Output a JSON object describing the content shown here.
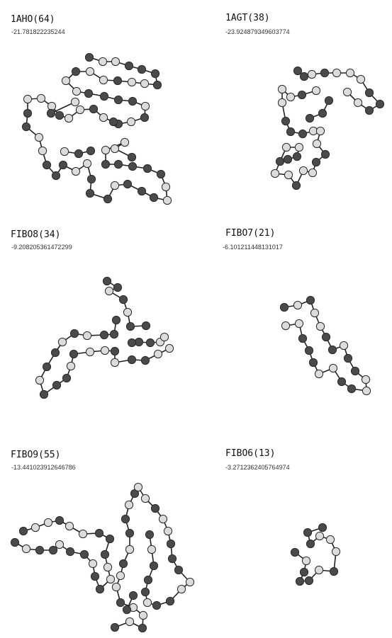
{
  "colors": {
    "hydrophobic": "#4a4a4a",
    "polar": "#dcdcdc",
    "bond": "#222222"
  },
  "proteins": [
    {
      "name": "1AHO(64)",
      "energy": "-21.781822235244",
      "sequence": "HPPHHHHPPHPPHPPHHHHPHPHHPHPPHPPPHHPPHHHPPHHHPHHHPPHHHHHPPPHHHPHP"
    },
    {
      "name": "1AGT(38)",
      "energy": "-23.924879349603774",
      "sequence": "HHPHPPPHHHPPPHPPPHHHPPPHHPPHPPHPPHHHHH"
    },
    {
      "name": "FIBO8(34)",
      "energy": "-9.208205361472299",
      "sequence": "HHPHPHHPPHHPHPPHPHHHPHHPHPHHHHHPPH"
    },
    {
      "name": "FIBO7(21)",
      "energy": "-6.101211448131017",
      "sequence": "HPHPPHHPHHPPHHPPHHHPP"
    },
    {
      "name": "FIBO9(55)",
      "energy": "-13.441023912646786",
      "sequence": "HPHHPHHPHHPPHHHPPHPPHHPHPPHPPHPHHPHPPHPPHHHPPHHPHHHPHHH"
    },
    {
      "name": "FIBO6(13)",
      "energy": "-3.2712362405764974",
      "sequence": "HPHHHPHPPPHHH"
    }
  ]
}
